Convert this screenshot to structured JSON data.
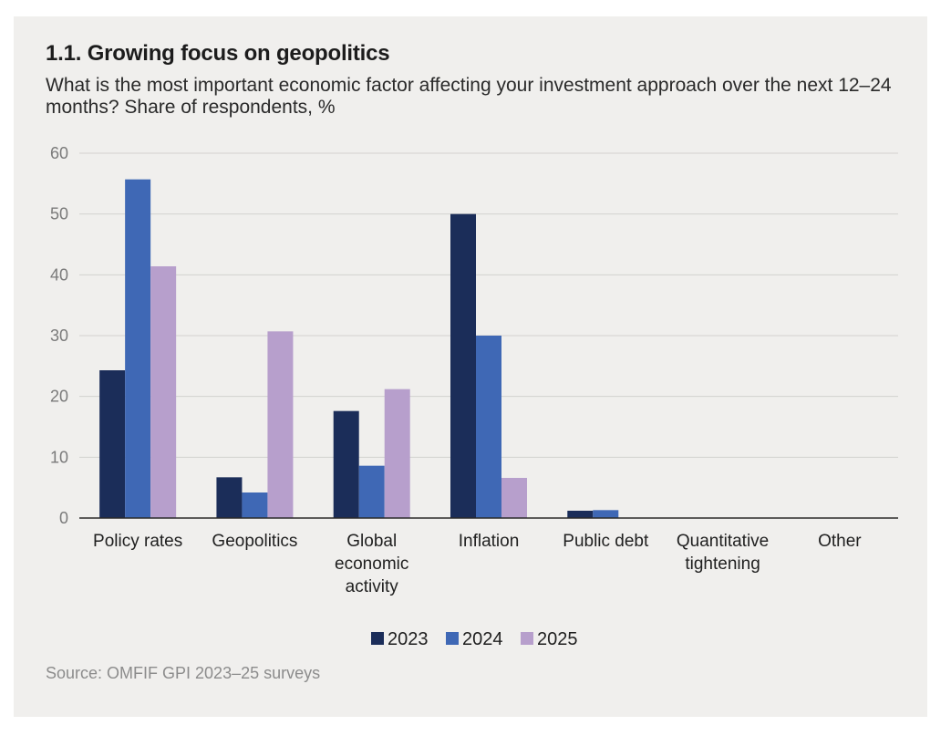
{
  "title": "1.1. Growing focus on geopolitics",
  "subtitle": "What is the most important economic factor affecting your investment approach over the next 12–24 months? Share of respondents, %",
  "source": "Source: OMFIF GPI 2023–25 surveys",
  "chart_data": {
    "type": "bar",
    "categories": [
      [
        "Policy rates"
      ],
      [
        "Geopolitics"
      ],
      [
        "Global",
        "economic",
        "activity"
      ],
      [
        "Inflation"
      ],
      [
        "Public debt"
      ],
      [
        "Quantitative",
        "tightening"
      ],
      [
        "Other"
      ]
    ],
    "series": [
      {
        "name": "2023",
        "color": "#1b2d59",
        "values": [
          24.3,
          6.7,
          17.6,
          50.0,
          1.2,
          0,
          0
        ]
      },
      {
        "name": "2024",
        "color": "#3f68b5",
        "values": [
          55.7,
          4.2,
          8.6,
          30.0,
          1.3,
          0,
          0
        ]
      },
      {
        "name": "2025",
        "color": "#b79fcc",
        "values": [
          41.4,
          30.7,
          21.2,
          6.6,
          0,
          0,
          0
        ]
      }
    ],
    "yticks": [
      0,
      10,
      20,
      30,
      40,
      50,
      60
    ],
    "ylim": [
      0,
      60
    ],
    "grid": true,
    "legend": "bottom-center"
  }
}
